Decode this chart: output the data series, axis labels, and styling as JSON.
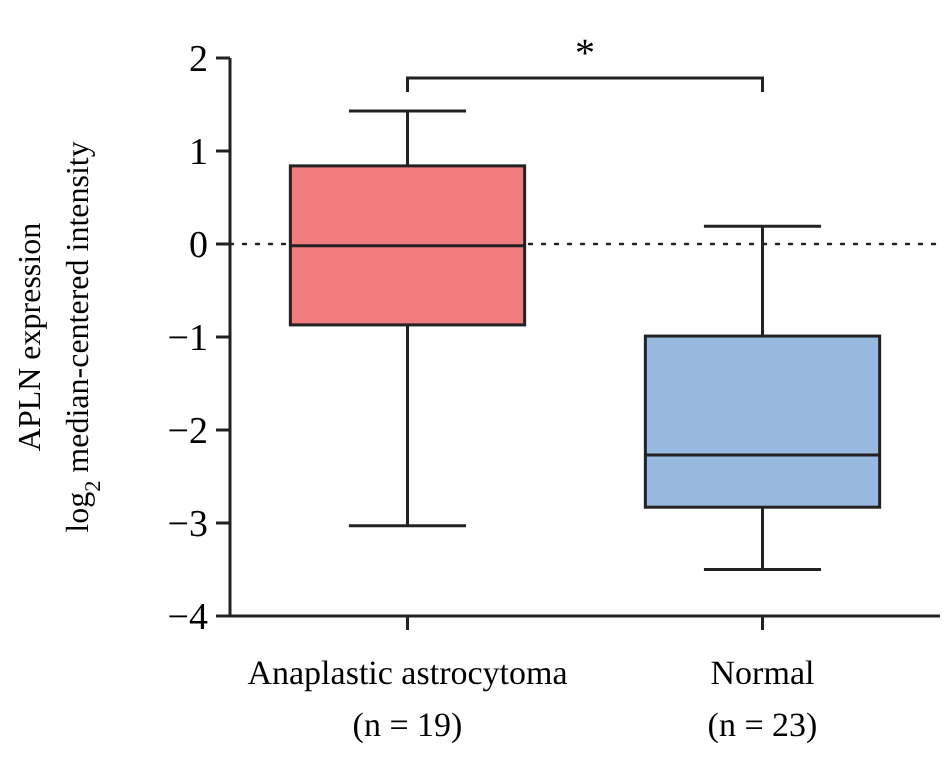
{
  "chart_data": {
    "type": "box",
    "ylabel": "APLN expression\nlog$_{2}$ median-centered intensity",
    "categories": [
      "Anaplastic astrocytoma\n(n = 19)",
      "Normal\n(n = 23)"
    ],
    "colors": [
      "#f07c7e",
      "#97b9e0"
    ],
    "boxes": [
      {
        "low": -3.03,
        "q1": -0.87,
        "median": -0.02,
        "q3": 0.84,
        "high": 1.43
      },
      {
        "low": -3.5,
        "q1": -2.83,
        "median": -2.27,
        "q3": -0.99,
        "high": 0.19
      }
    ],
    "ylim": [
      -4,
      2
    ],
    "yticks": [
      {
        "value": -4,
        "label": "−4"
      },
      {
        "value": -3,
        "label": "−3"
      },
      {
        "value": -2,
        "label": "−2"
      },
      {
        "value": -1,
        "label": "−1"
      },
      0,
      1,
      2
    ],
    "ref_lines": [
      {
        "axis": "y",
        "value": 0,
        "line_style": "dotted"
      }
    ],
    "annotations": [
      "*"
    ]
  }
}
